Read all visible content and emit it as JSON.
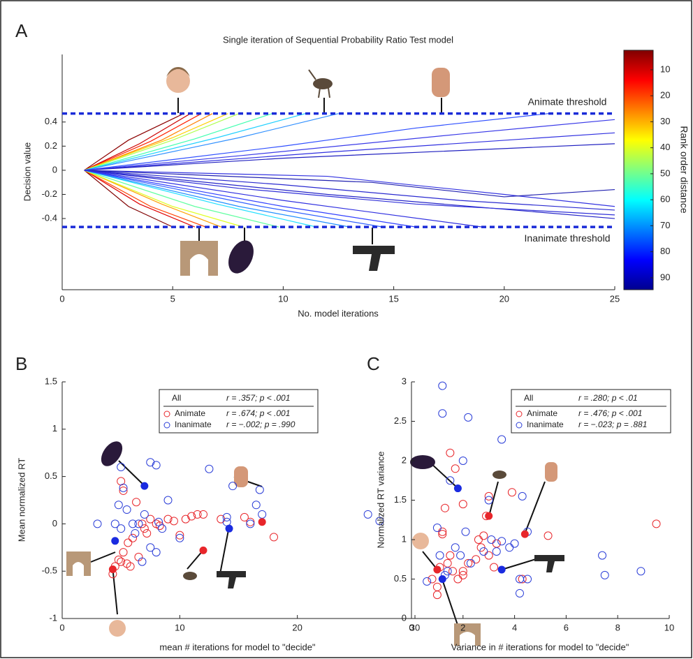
{
  "chart_data": [
    {
      "type": "line",
      "panel": "A",
      "title": "Single iteration of Sequential Probability Ratio Test model",
      "xlabel": "No. model iterations",
      "ylabel": "Decision value",
      "xlim": [
        0,
        25
      ],
      "xticks": [
        0,
        5,
        10,
        15,
        20,
        25
      ],
      "ylim": [
        -0.99,
        0.96
      ],
      "yticks": [
        -0.4,
        -0.2,
        0,
        0.2,
        0.4
      ],
      "thresholds": [
        {
          "value": 0.47,
          "label": "Animate threshold"
        },
        {
          "value": -0.47,
          "label": "Inanimate threshold"
        }
      ],
      "threshold_color": "#1a2bd8",
      "colorbar": {
        "label": "Rank order distance",
        "lim": [
          2.5,
          94.6
        ],
        "ticks": [
          10,
          20,
          30,
          40,
          50,
          60,
          70,
          80,
          90
        ],
        "colors": [
          "#800000",
          "#ff0000",
          "#ff8000",
          "#ffff00",
          "#80ff80",
          "#00ffff",
          "#0080ff",
          "#0000ff",
          "#00008f"
        ]
      },
      "series": [
        {
          "color": "#8b0000",
          "x": [
            1,
            3,
            5.5
          ],
          "values": [
            0,
            0.25,
            0.47
          ]
        },
        {
          "color": "#cc0000",
          "x": [
            1,
            3.5,
            5.8
          ],
          "values": [
            0,
            0.22,
            0.47
          ]
        },
        {
          "color": "#ff2000",
          "x": [
            1,
            4,
            6.3
          ],
          "values": [
            0,
            0.24,
            0.47
          ]
        },
        {
          "color": "#ff8000",
          "x": [
            1,
            4.5,
            6.8
          ],
          "values": [
            0,
            0.25,
            0.47
          ]
        },
        {
          "color": "#ffd000",
          "x": [
            1,
            5,
            7.5
          ],
          "values": [
            0,
            0.27,
            0.47
          ]
        },
        {
          "color": "#b0ff50",
          "x": [
            1,
            5,
            8
          ],
          "values": [
            0,
            0.25,
            0.47
          ]
        },
        {
          "color": "#40ffb0",
          "x": [
            1,
            6,
            9.5
          ],
          "values": [
            0,
            0.26,
            0.47
          ]
        },
        {
          "color": "#20d0ff",
          "x": [
            1,
            7,
            11
          ],
          "values": [
            0,
            0.27,
            0.47
          ]
        },
        {
          "color": "#3090ff",
          "x": [
            1,
            8,
            12.5
          ],
          "values": [
            0,
            0.27,
            0.47
          ]
        },
        {
          "color": "#3050ff",
          "x": [
            1,
            10,
            16,
            22
          ],
          "values": [
            0,
            0.2,
            0.35,
            0.47
          ]
        },
        {
          "color": "#3030e0",
          "x": [
            1,
            12,
            25
          ],
          "values": [
            0,
            0.15,
            0.31
          ]
        },
        {
          "color": "#2020c0",
          "x": [
            1,
            10,
            25
          ],
          "values": [
            0,
            0.1,
            0.22
          ]
        },
        {
          "color": "#3a3ae8",
          "x": [
            1,
            8,
            18,
            25
          ],
          "values": [
            0,
            0.12,
            0.3,
            0.42
          ]
        },
        {
          "color": "#800000",
          "x": [
            1,
            3,
            5
          ],
          "values": [
            0,
            -0.3,
            -0.47
          ]
        },
        {
          "color": "#e00000",
          "x": [
            1,
            3.5,
            6
          ],
          "values": [
            0,
            -0.28,
            -0.47
          ]
        },
        {
          "color": "#ff4000",
          "x": [
            1,
            4,
            6.5
          ],
          "values": [
            0,
            -0.3,
            -0.47
          ]
        },
        {
          "color": "#ffa000",
          "x": [
            1,
            4.5,
            7.2
          ],
          "values": [
            0,
            -0.28,
            -0.47
          ]
        },
        {
          "color": "#e0ff20",
          "x": [
            1,
            5,
            8.2
          ],
          "values": [
            0,
            -0.3,
            -0.47
          ]
        },
        {
          "color": "#60ffa0",
          "x": [
            1,
            6,
            9.8
          ],
          "values": [
            0,
            -0.3,
            -0.47
          ]
        },
        {
          "color": "#20e0ff",
          "x": [
            1,
            7,
            11.5
          ],
          "values": [
            0,
            -0.28,
            -0.47
          ]
        },
        {
          "color": "#2090ff",
          "x": [
            1,
            8,
            13
          ],
          "values": [
            0,
            -0.3,
            -0.47
          ]
        },
        {
          "color": "#3060ff",
          "x": [
            1,
            9,
            14.5
          ],
          "values": [
            0,
            -0.3,
            -0.47
          ]
        },
        {
          "color": "#3040ff",
          "x": [
            1,
            10,
            16
          ],
          "values": [
            0,
            -0.3,
            -0.47
          ]
        },
        {
          "color": "#3030e0",
          "x": [
            1,
            10,
            19
          ],
          "values": [
            0,
            -0.25,
            -0.47
          ]
        },
        {
          "color": "#2525c8",
          "x": [
            1,
            12,
            25
          ],
          "values": [
            0,
            -0.2,
            -0.4
          ]
        },
        {
          "color": "#2a2ad0",
          "x": [
            1,
            10,
            18,
            25
          ],
          "values": [
            0,
            -0.12,
            -0.25,
            -0.33
          ]
        },
        {
          "color": "#3535e0",
          "x": [
            1,
            12,
            20,
            25
          ],
          "values": [
            0,
            -0.05,
            -0.2,
            -0.3
          ]
        },
        {
          "color": "#2020b0",
          "x": [
            1,
            14,
            20,
            25
          ],
          "values": [
            0,
            -0.1,
            -0.22,
            -0.16
          ]
        },
        {
          "color": "#3030d8",
          "x": [
            1,
            8,
            16,
            25
          ],
          "values": [
            0,
            -0.15,
            -0.28,
            -0.37
          ]
        }
      ]
    },
    {
      "type": "scatter",
      "panel": "B",
      "xlabel": "mean # iterations for model to \"decide\"",
      "ylabel": "Mean normalized RT",
      "xlim": [
        0,
        30
      ],
      "xticks": [
        0,
        10,
        20,
        30
      ],
      "ylim": [
        -1,
        1.5
      ],
      "yticks": [
        -1,
        -0.5,
        0,
        0.5,
        1,
        1.5
      ],
      "legend_all": {
        "name": "All",
        "stats": "r = .357; p < .001"
      },
      "series": [
        {
          "name": "Animate",
          "stats": "r = .674; p < .001",
          "color": "#e8262b",
          "x": [
            4.3,
            4.5,
            4.8,
            5,
            5.2,
            5.5,
            5,
            5.2,
            5.6,
            6,
            6.3,
            6.5,
            7,
            7.2,
            7.5,
            8,
            8.3,
            9,
            9.5,
            10,
            10.5,
            11,
            11.5,
            12,
            13.5,
            15.5,
            16,
            18,
            6.8,
            5.8
          ],
          "values": [
            -0.53,
            -0.45,
            -0.38,
            -0.4,
            -0.3,
            -0.42,
            0.45,
            0.35,
            -0.2,
            -0.15,
            0.23,
            -0.35,
            -0.05,
            -0.1,
            0.05,
            0,
            -0.02,
            0.05,
            0.03,
            -0.12,
            0.05,
            0.08,
            0.1,
            0.1,
            0.05,
            0.07,
            0.02,
            -0.14,
            0,
            -0.45
          ]
        },
        {
          "name": "Inanimate",
          "stats": "r = −.002; p = .990",
          "color": "#2b3ed8",
          "x": [
            3,
            4.5,
            4.8,
            5,
            5.2,
            5.5,
            5,
            6,
            6.5,
            7,
            7.5,
            8,
            8.5,
            8.2,
            8,
            7.5,
            9,
            10,
            12.5,
            14,
            14,
            14.5,
            16,
            16.5,
            16.8,
            17,
            26,
            27,
            6.2,
            6.8
          ],
          "values": [
            0,
            0,
            0.2,
            0.6,
            0.38,
            0.15,
            -0.05,
            0,
            0,
            0.1,
            0.65,
            0.62,
            -0.05,
            0.02,
            -0.3,
            -0.25,
            0.25,
            -0.15,
            0.58,
            0.07,
            0.02,
            0.4,
            0,
            0.2,
            0.36,
            0.1,
            0.1,
            0.03,
            -0.1,
            -0.4
          ]
        }
      ],
      "highlights": [
        {
          "color": "#e8262b",
          "x": [
            4.3,
            12,
            17
          ],
          "values": [
            -0.48,
            -0.28,
            0.02
          ]
        },
        {
          "color": "#1a2be0",
          "x": [
            4.5,
            7,
            14.2
          ],
          "values": [
            -0.18,
            0.4,
            -0.05
          ]
        }
      ]
    },
    {
      "type": "scatter",
      "panel": "C",
      "xlabel": "Variance in # iterations for model to \"decide\"",
      "ylabel": "Normalized RT variance",
      "xlim": [
        0,
        10
      ],
      "xticks": [
        0,
        2,
        4,
        6,
        8,
        10
      ],
      "ylim": [
        0,
        3
      ],
      "yticks": [
        0,
        0.5,
        1,
        1.5,
        2,
        2.5,
        3
      ],
      "legend_all": {
        "name": "All",
        "stats": "r = .280; p < .01"
      },
      "series": [
        {
          "name": "Animate",
          "stats": "r = .476; p < .001",
          "color": "#e8262b",
          "x": [
            0.8,
            1,
            1,
            1.1,
            1.2,
            1.3,
            1.4,
            1.5,
            1.6,
            1.7,
            1.8,
            2,
            2,
            2.2,
            2.5,
            2.7,
            2.8,
            2.9,
            3,
            3,
            3.2,
            3.3,
            3.9,
            4.3,
            5.3,
            9.5,
            1.2,
            2.6,
            1.5,
            2
          ],
          "values": [
            0.5,
            0.4,
            0.3,
            0.65,
            1.1,
            1.4,
            0.7,
            2.1,
            0.6,
            1.9,
            0.5,
            1.45,
            0.55,
            0.7,
            0.75,
            0.9,
            1.05,
            1.3,
            1.55,
            0.8,
            0.65,
            0.95,
            1.6,
            0.5,
            1.05,
            1.2,
            1.07,
            1,
            0.8,
            0.6
          ]
        },
        {
          "name": "Inanimate",
          "stats": "r = −.023; p = .881",
          "color": "#2b3ed8",
          "x": [
            0.6,
            1,
            1.2,
            1.2,
            1.5,
            1.4,
            1.7,
            2,
            2.2,
            2.1,
            1.9,
            2.3,
            2.8,
            3,
            3.1,
            3.3,
            3.5,
            3.5,
            3.8,
            4,
            4.2,
            4.3,
            4.5,
            4.2,
            4.5,
            7.4,
            7.5,
            8.9,
            1.1,
            1.3
          ],
          "values": [
            0.47,
            1.15,
            2.95,
            2.6,
            1.75,
            0.6,
            0.9,
            2,
            2.55,
            1.1,
            0.8,
            0.7,
            0.85,
            1.5,
            1,
            0.85,
            2.27,
            0.98,
            0.9,
            0.95,
            0.5,
            1.55,
            0.5,
            0.32,
            1.1,
            0.8,
            0.55,
            0.6,
            0.8,
            0.55
          ]
        }
      ],
      "highlights": [
        {
          "color": "#e8262b",
          "x": [
            1,
            3,
            4.4
          ],
          "values": [
            0.62,
            1.3,
            1.07
          ]
        },
        {
          "color": "#1a2be0",
          "x": [
            1.8,
            1.2,
            3.5
          ],
          "values": [
            1.65,
            0.5,
            0.62
          ]
        }
      ]
    }
  ]
}
